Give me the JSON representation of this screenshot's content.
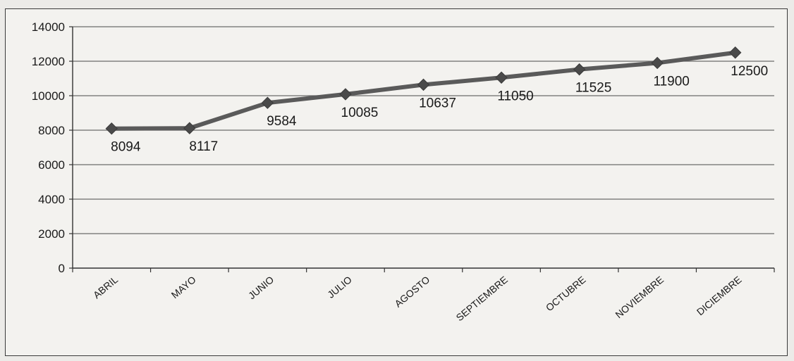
{
  "chart_data": {
    "type": "line",
    "title": "",
    "xlabel": "",
    "ylabel": "",
    "categories": [
      "ABRIL",
      "MAYO",
      "JUNIO",
      "JULIO",
      "AGOSTO",
      "SEPTIEMBRE",
      "OCTUBRE",
      "NOVIEMBRE",
      "DICIEMBRE"
    ],
    "series": [
      {
        "values": [
          8094,
          8117,
          9584,
          10085,
          10637,
          11050,
          11525,
          11900,
          12500
        ],
        "data_labels": [
          "8094",
          "8117",
          "9584",
          "10085",
          "10637",
          "11050",
          "11525",
          "11900",
          "12500"
        ],
        "color": "#5a5a5a",
        "marker": "diamond"
      }
    ],
    "yticks": [
      "0",
      "2000",
      "4000",
      "6000",
      "8000",
      "10000",
      "12000",
      "14000"
    ],
    "ylim": [
      0,
      14000
    ],
    "grid": true,
    "legend": "none"
  }
}
